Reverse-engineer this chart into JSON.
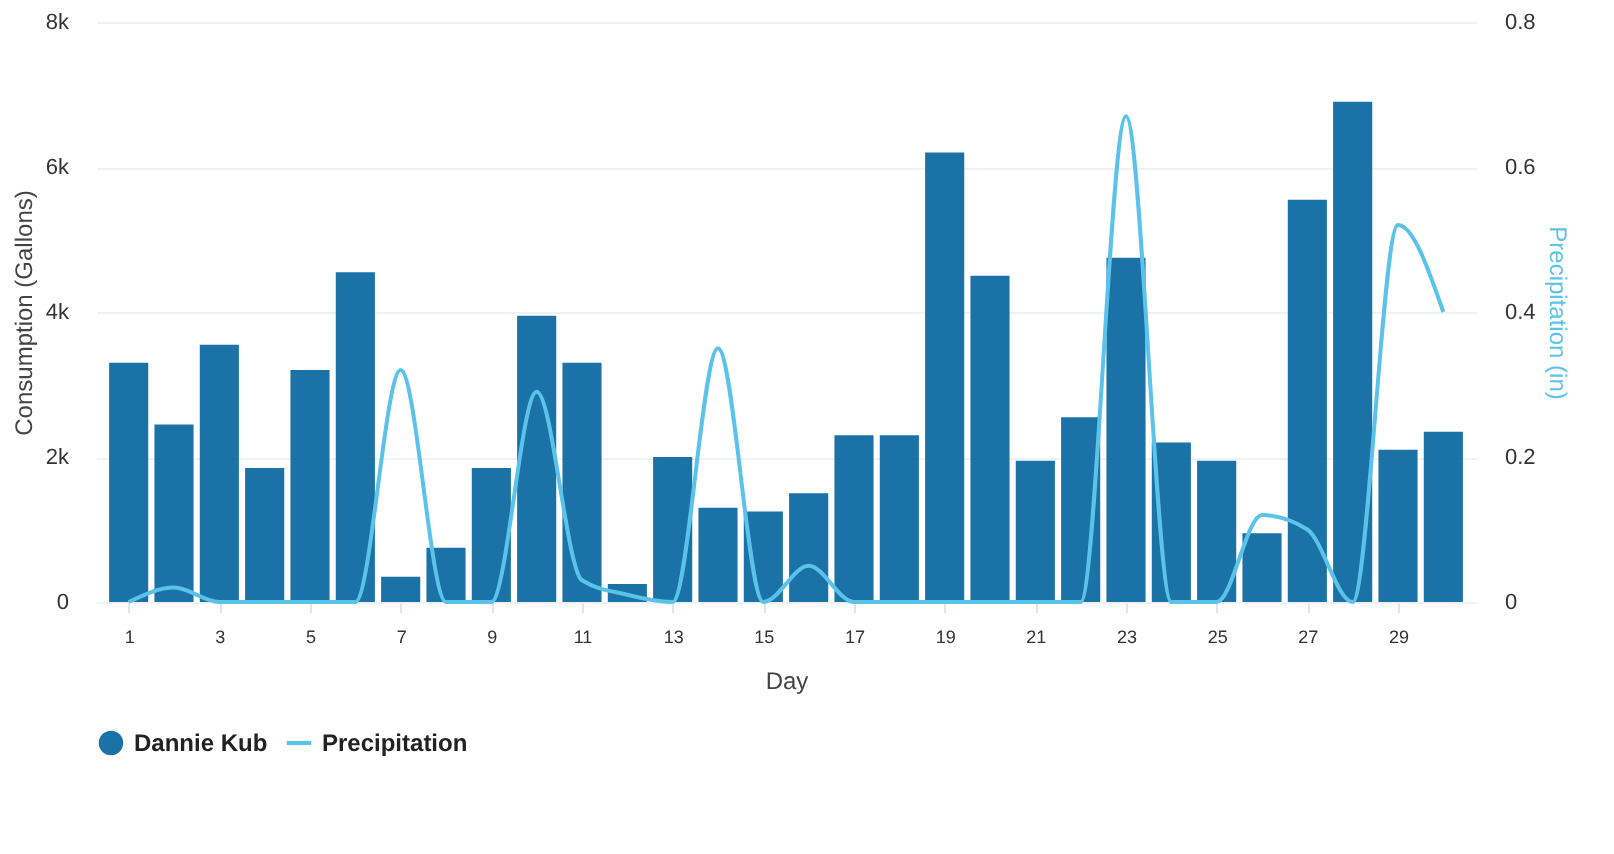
{
  "chart_data": {
    "type": "bar",
    "xlabel": "Day",
    "ylabel": "Consumption (Gallons)",
    "y2label": "Precipitation (in)",
    "x": [
      1,
      2,
      3,
      4,
      5,
      6,
      7,
      8,
      9,
      10,
      11,
      12,
      13,
      14,
      15,
      16,
      17,
      18,
      19,
      20,
      21,
      22,
      23,
      24,
      25,
      26,
      27,
      28,
      29,
      30
    ],
    "xlim": [
      0.5,
      30.5
    ],
    "xticks": [
      1,
      3,
      5,
      7,
      9,
      11,
      13,
      15,
      17,
      19,
      21,
      23,
      25,
      27,
      29
    ],
    "ylim": [
      0,
      8000
    ],
    "yticks": [
      {
        "value": 0,
        "label": "0"
      },
      {
        "value": 2000,
        "label": "2k"
      },
      {
        "value": 4000,
        "label": "4k"
      },
      {
        "value": 6000,
        "label": "6k"
      },
      {
        "value": 8000,
        "label": "8k"
      }
    ],
    "y2lim": [
      0,
      0.8
    ],
    "y2ticks": [
      {
        "value": 0,
        "label": "0"
      },
      {
        "value": 0.2,
        "label": "0.2"
      },
      {
        "value": 0.4,
        "label": "0.4"
      },
      {
        "value": 0.6,
        "label": "0.6"
      },
      {
        "value": 0.8,
        "label": "0.8"
      }
    ],
    "series": [
      {
        "name": "Dannie Kub",
        "color": "#1a72a6",
        "values": [
          3300,
          2450,
          3550,
          1850,
          3200,
          4550,
          350,
          750,
          1850,
          3950,
          3300,
          250,
          2000,
          1300,
          1250,
          1500,
          2300,
          2300,
          6200,
          4500,
          1950,
          2550,
          4750,
          2200,
          1950,
          950,
          5550,
          6900,
          2100,
          2350
        ]
      },
      {
        "name": "Precipitation",
        "type": "line",
        "axis": "y2",
        "color": "#5bc3ea",
        "values": [
          0,
          0.02,
          0,
          0,
          0,
          0,
          0.32,
          0,
          0,
          0.29,
          0.03,
          0.01,
          0,
          0.35,
          0,
          0.05,
          0,
          0,
          0,
          0,
          0,
          0,
          0.67,
          0,
          0,
          0.12,
          0.1,
          0,
          0.52,
          0.4
        ]
      }
    ],
    "grid": "y",
    "legend": "bottom",
    "line_style": "solid",
    "marker": "none"
  }
}
